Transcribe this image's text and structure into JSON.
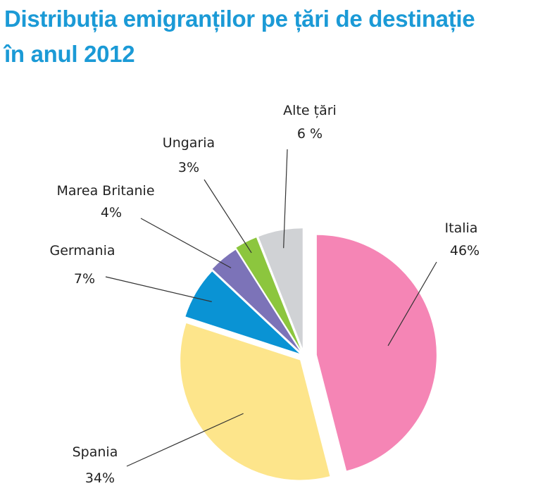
{
  "chart_data": {
    "type": "pie",
    "title_line1": "Distribuția emigranților pe țări de destinație",
    "title_line2": "în anul 2012",
    "slices": [
      {
        "name": "Italia",
        "value": 46,
        "label": "46%",
        "color": "#f585b5"
      },
      {
        "name": "Spania",
        "value": 34,
        "label": "34%",
        "color": "#fde58b"
      },
      {
        "name": "Germania",
        "value": 7,
        "label": "7%",
        "color": "#0a93d4"
      },
      {
        "name": "Marea Britanie",
        "value": 4,
        "label": "4%",
        "color": "#7c73b8"
      },
      {
        "name": "Ungaria",
        "value": 3,
        "label": "3%",
        "color": "#8cc63e"
      },
      {
        "name": "Alte țări",
        "value": 6,
        "label": "6 %",
        "color": "#d0d2d5"
      }
    ],
    "start_angle": "top, clockwise",
    "exploded": true
  }
}
